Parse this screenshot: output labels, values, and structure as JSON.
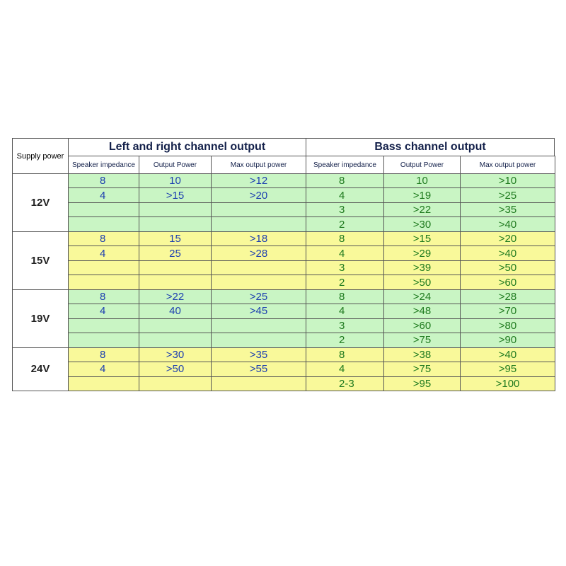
{
  "header": {
    "supply": "Supply power",
    "left_right": "Left and right channel output",
    "bass": "Bass channel output"
  },
  "subheaders": [
    "Speaker impedance",
    "Output Power",
    "Max output power",
    "Speaker impedance",
    "Output Power",
    "Max output power"
  ],
  "groups": [
    {
      "supply": "12V",
      "rows": [
        [
          "8",
          "10",
          ">12",
          "8",
          "10",
          ">10"
        ],
        [
          "4",
          ">15",
          ">20",
          "4",
          ">19",
          ">25"
        ],
        [
          null,
          null,
          null,
          "3",
          ">22",
          ">35"
        ],
        [
          null,
          null,
          null,
          "2",
          ">30",
          ">40"
        ]
      ]
    },
    {
      "supply": "15V",
      "rows": [
        [
          "8",
          "15",
          ">18",
          "8",
          ">15",
          ">20"
        ],
        [
          "4",
          "25",
          ">28",
          "4",
          ">29",
          ">40"
        ],
        [
          null,
          null,
          null,
          "3",
          ">39",
          ">50"
        ],
        [
          null,
          null,
          null,
          "2",
          ">50",
          ">60"
        ]
      ]
    },
    {
      "supply": "19V",
      "rows": [
        [
          "8",
          ">22",
          ">25",
          "8",
          ">24",
          ">28"
        ],
        [
          "4",
          "40",
          ">45",
          "4",
          ">48",
          ">70"
        ],
        [
          null,
          null,
          null,
          "3",
          ">60",
          ">80"
        ],
        [
          null,
          null,
          null,
          "2",
          ">75",
          ">90"
        ]
      ]
    },
    {
      "supply": "24V",
      "rows": [
        [
          "8",
          ">30",
          ">35",
          "8",
          ">38",
          ">40"
        ],
        [
          "4",
          ">50",
          ">55",
          "4",
          ">75",
          ">95"
        ],
        [
          null,
          null,
          null,
          "2-3",
          ">95",
          ">100"
        ]
      ]
    }
  ]
}
